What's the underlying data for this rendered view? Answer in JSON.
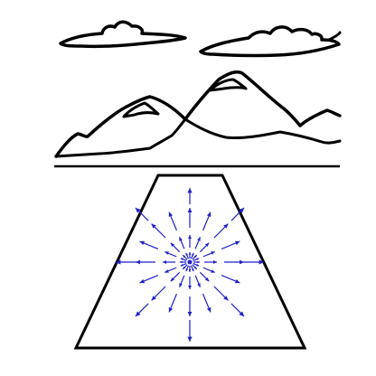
{
  "figure": {
    "description_elements": [
      "cloud-left",
      "cloud-right",
      "mountain-range",
      "horizon-line",
      "road-trapezoid",
      "flow-field-arrows"
    ]
  },
  "colors": {
    "outline": "#000000",
    "flow_arrows": "#1f1fcc",
    "background": "#ffffff"
  }
}
